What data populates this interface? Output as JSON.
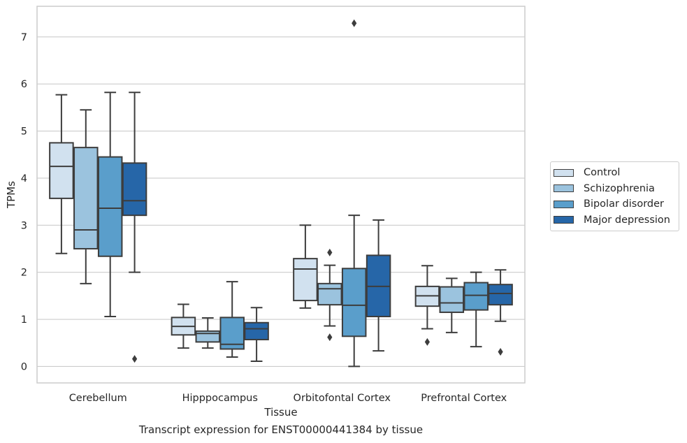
{
  "chart_data": {
    "type": "box",
    "title": "",
    "caption": "Transcript expression for ENST00000441384 by tissue",
    "xlabel": "Tissue",
    "ylabel": "TPMs",
    "ylim": [
      -0.35,
      7.65
    ],
    "yticks": [
      0,
      1,
      2,
      3,
      4,
      5,
      6,
      7
    ],
    "grid": true,
    "legend_position": "right",
    "categories": [
      "Cerebellum",
      "Hipppocampus",
      "Orbitofontal Cortex",
      "Prefrontal Cortex"
    ],
    "series": [
      {
        "name": "Control",
        "color": "#d1e1ef",
        "boxes": [
          {
            "whislo": 2.4,
            "q1": 3.57,
            "med": 4.25,
            "q3": 4.75,
            "whishi": 5.77,
            "fliers": []
          },
          {
            "whislo": 0.39,
            "q1": 0.67,
            "med": 0.85,
            "q3": 1.04,
            "whishi": 1.32,
            "fliers": []
          },
          {
            "whislo": 1.24,
            "q1": 1.4,
            "med": 2.07,
            "q3": 2.29,
            "whishi": 3.0,
            "fliers": []
          },
          {
            "whislo": 0.8,
            "q1": 1.28,
            "med": 1.5,
            "q3": 1.7,
            "whishi": 2.14,
            "fliers": [
              0.52
            ]
          }
        ]
      },
      {
        "name": "Schizophrenia",
        "color": "#9bc3de",
        "boxes": [
          {
            "whislo": 1.76,
            "q1": 2.5,
            "med": 2.9,
            "q3": 4.65,
            "whishi": 5.45,
            "fliers": []
          },
          {
            "whislo": 0.39,
            "q1": 0.52,
            "med": 0.7,
            "q3": 0.75,
            "whishi": 1.03,
            "fliers": []
          },
          {
            "whislo": 0.86,
            "q1": 1.31,
            "med": 1.65,
            "q3": 1.76,
            "whishi": 2.15,
            "fliers": [
              2.42,
              0.62
            ]
          },
          {
            "whislo": 0.72,
            "q1": 1.15,
            "med": 1.35,
            "q3": 1.69,
            "whishi": 1.87,
            "fliers": []
          }
        ]
      },
      {
        "name": "Bipolar disorder",
        "color": "#5a9ecb",
        "boxes": [
          {
            "whislo": 1.06,
            "q1": 2.34,
            "med": 3.36,
            "q3": 4.45,
            "whishi": 5.82,
            "fliers": []
          },
          {
            "whislo": 0.2,
            "q1": 0.37,
            "med": 0.47,
            "q3": 1.04,
            "whishi": 1.8,
            "fliers": []
          },
          {
            "whislo": 0.0,
            "q1": 0.64,
            "med": 1.3,
            "q3": 2.08,
            "whishi": 3.21,
            "fliers": [
              7.29
            ]
          },
          {
            "whislo": 0.42,
            "q1": 1.2,
            "med": 1.51,
            "q3": 1.78,
            "whishi": 2.0,
            "fliers": []
          }
        ]
      },
      {
        "name": "Major depression",
        "color": "#2666a8",
        "boxes": [
          {
            "whislo": 2.0,
            "q1": 3.21,
            "med": 3.52,
            "q3": 4.32,
            "whishi": 5.82,
            "fliers": [
              0.16
            ]
          },
          {
            "whislo": 0.11,
            "q1": 0.57,
            "med": 0.8,
            "q3": 0.93,
            "whishi": 1.25,
            "fliers": []
          },
          {
            "whislo": 0.33,
            "q1": 1.06,
            "med": 1.7,
            "q3": 2.36,
            "whishi": 3.11,
            "fliers": []
          },
          {
            "whislo": 0.96,
            "q1": 1.31,
            "med": 1.55,
            "q3": 1.74,
            "whishi": 2.05,
            "fliers": [
              0.31
            ]
          }
        ]
      }
    ]
  }
}
